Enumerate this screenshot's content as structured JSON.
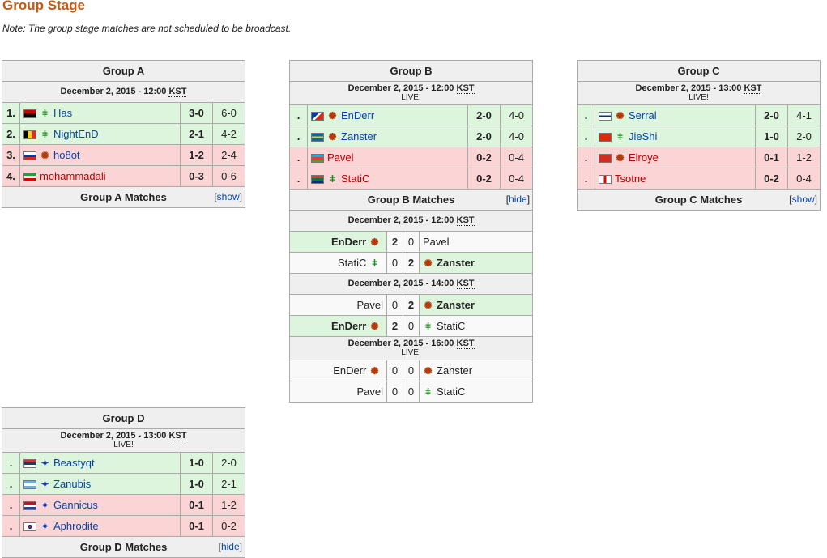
{
  "page": {
    "title": "Group Stage",
    "note": "Note: The group stage matches are not scheduled to be broadcast."
  },
  "colors": {
    "title": "#c05a14",
    "advance": "#ddf4dd",
    "eliminated": "#fbd5d5",
    "link": "#0645ad"
  },
  "groupA": {
    "title": "Group A",
    "date": "December 2, 2015 - 12:00",
    "tz": "KST",
    "rows": [
      {
        "rank": "1.",
        "name": "Has",
        "race": "protoss",
        "score": "3-0",
        "maps": "6-0"
      },
      {
        "rank": "2.",
        "name": "NightEnD",
        "race": "protoss",
        "score": "2-1",
        "maps": "4-2"
      },
      {
        "rank": "3.",
        "name": "ho8ot",
        "race": "zerg",
        "score": "1-2",
        "maps": "2-4"
      },
      {
        "rank": "4.",
        "name": "mohammadali",
        "race": "zerg",
        "score": "0-3",
        "maps": "0-6"
      }
    ],
    "matches_label": "Group A Matches",
    "toggle": "show"
  },
  "groupB": {
    "title": "Group B",
    "date": "December 2, 2015 - 12:00",
    "tz": "KST",
    "live": "LIVE!",
    "rows": [
      {
        "rank": ".",
        "name": "EnDerr",
        "race": "zerg",
        "score": "2-0",
        "maps": "4-0"
      },
      {
        "rank": ".",
        "name": "Zanster",
        "race": "zerg",
        "score": "2-0",
        "maps": "4-0"
      },
      {
        "rank": ".",
        "name": "Pavel",
        "race": "",
        "score": "0-2",
        "maps": "0-4"
      },
      {
        "rank": ".",
        "name": "StatiC",
        "race": "protoss",
        "score": "0-2",
        "maps": "0-4"
      }
    ],
    "matches_label": "Group B Matches",
    "toggle": "hide",
    "rounds": [
      {
        "date": "December 2, 2015 - 12:00",
        "tz": "KST",
        "live": "",
        "matches": [
          {
            "p1": "EnDerr",
            "r1": "zerg",
            "s1": "2",
            "s2": "0",
            "p2": "Pavel",
            "r2": "",
            "winner": 1
          },
          {
            "p1": "StatiC",
            "r1": "protoss",
            "s1": "0",
            "s2": "2",
            "p2": "Zanster",
            "r2": "zerg",
            "winner": 2
          }
        ]
      },
      {
        "date": "December 2, 2015 - 14:00",
        "tz": "KST",
        "live": "",
        "matches": [
          {
            "p1": "Pavel",
            "r1": "",
            "s1": "0",
            "s2": "2",
            "p2": "Zanster",
            "r2": "zerg",
            "winner": 2
          },
          {
            "p1": "EnDerr",
            "r1": "zerg",
            "s1": "2",
            "s2": "0",
            "p2": "StatiC",
            "r2": "protoss",
            "winner": 1
          }
        ]
      },
      {
        "date": "December 2, 2015 - 16:00",
        "tz": "KST",
        "live": "LIVE!",
        "matches": [
          {
            "p1": "EnDerr",
            "r1": "zerg",
            "s1": "0",
            "s2": "0",
            "p2": "Zanster",
            "r2": "zerg",
            "winner": 0
          },
          {
            "p1": "Pavel",
            "r1": "",
            "s1": "0",
            "s2": "0",
            "p2": "StatiC",
            "r2": "protoss",
            "winner": 0
          }
        ]
      }
    ]
  },
  "groupC": {
    "title": "Group C",
    "date": "December 2, 2015 - 13:00",
    "tz": "KST",
    "live": "LIVE!",
    "rows": [
      {
        "rank": ".",
        "name": "Serral",
        "race": "zerg",
        "score": "2-0",
        "maps": "4-1"
      },
      {
        "rank": ".",
        "name": "JieShi",
        "race": "protoss",
        "score": "1-0",
        "maps": "2-0"
      },
      {
        "rank": ".",
        "name": "Elroye",
        "race": "zerg",
        "score": "0-1",
        "maps": "1-2"
      },
      {
        "rank": ".",
        "name": "Tsotne",
        "race": "",
        "score": "0-2",
        "maps": "0-4"
      }
    ],
    "matches_label": "Group C Matches",
    "toggle": "show"
  },
  "groupD": {
    "title": "Group D",
    "date": "December 2, 2015 - 13:00",
    "tz": "KST",
    "live": "LIVE!",
    "rows": [
      {
        "rank": ".",
        "name": "Beastyqt",
        "race": "terran",
        "score": "1-0",
        "maps": "2-0"
      },
      {
        "rank": ".",
        "name": "Zanubis",
        "race": "terran",
        "score": "1-0",
        "maps": "2-1"
      },
      {
        "rank": ".",
        "name": "Gannicus",
        "race": "terran",
        "score": "0-1",
        "maps": "1-2"
      },
      {
        "rank": ".",
        "name": "Aphrodite",
        "race": "terran",
        "score": "0-1",
        "maps": "0-2"
      }
    ],
    "matches_label": "Group D Matches",
    "toggle": "hide"
  }
}
